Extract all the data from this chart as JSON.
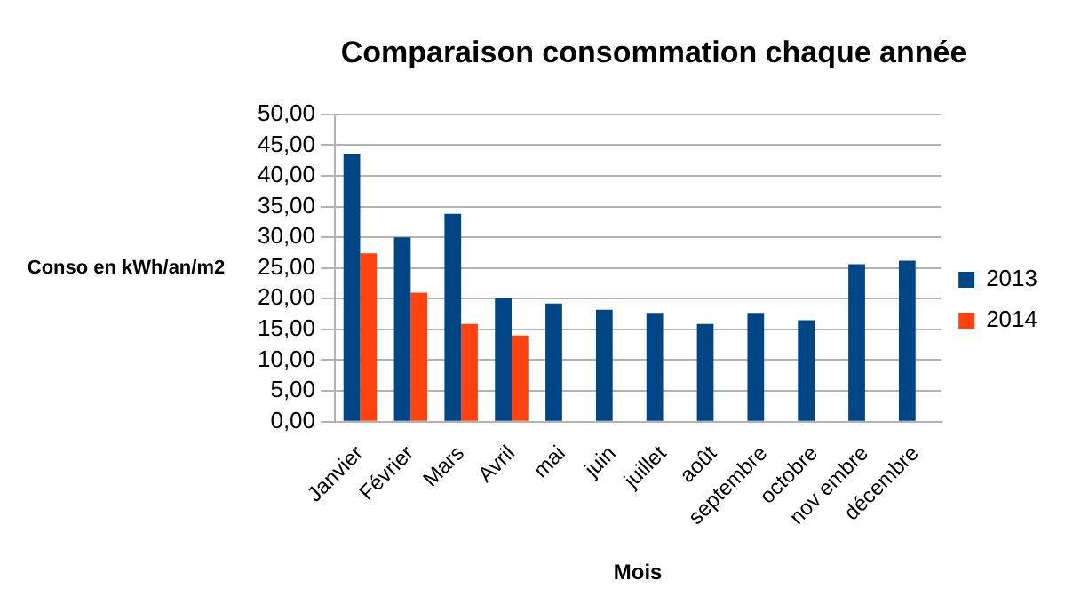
{
  "chart_data": {
    "type": "bar",
    "title": "Comparaison consommation chaque année",
    "xlabel": "Mois",
    "ylabel": "Conso en kWh/an/m2",
    "categories": [
      "Janvier",
      "Février",
      "Mars",
      "Avril",
      "mai",
      "juin",
      "juillet",
      "août",
      "septembre",
      "octobre",
      "nov embre",
      "décembre"
    ],
    "series": [
      {
        "name": "2013",
        "color": "#004586",
        "values": [
          43.6,
          30.0,
          33.8,
          20.1,
          19.2,
          18.2,
          17.7,
          15.9,
          17.7,
          16.5,
          25.6,
          26.2
        ]
      },
      {
        "name": "2014",
        "color": "#ff420e",
        "values": [
          27.4,
          21.0,
          15.9,
          14.0,
          null,
          null,
          null,
          null,
          null,
          null,
          null,
          null
        ]
      }
    ],
    "ylim": [
      0,
      50
    ],
    "yticks": [
      {
        "value": 0,
        "label": "0,00"
      },
      {
        "value": 5,
        "label": "5,00"
      },
      {
        "value": 10,
        "label": "10,00"
      },
      {
        "value": 15,
        "label": "15,00"
      },
      {
        "value": 20,
        "label": "20,00"
      },
      {
        "value": 25,
        "label": "25,00"
      },
      {
        "value": 30,
        "label": "30,00"
      },
      {
        "value": 35,
        "label": "35,00"
      },
      {
        "value": 40,
        "label": "40,00"
      },
      {
        "value": 45,
        "label": "45,00"
      },
      {
        "value": 50,
        "label": "50,00"
      }
    ],
    "grid": "y",
    "legend": "right"
  }
}
